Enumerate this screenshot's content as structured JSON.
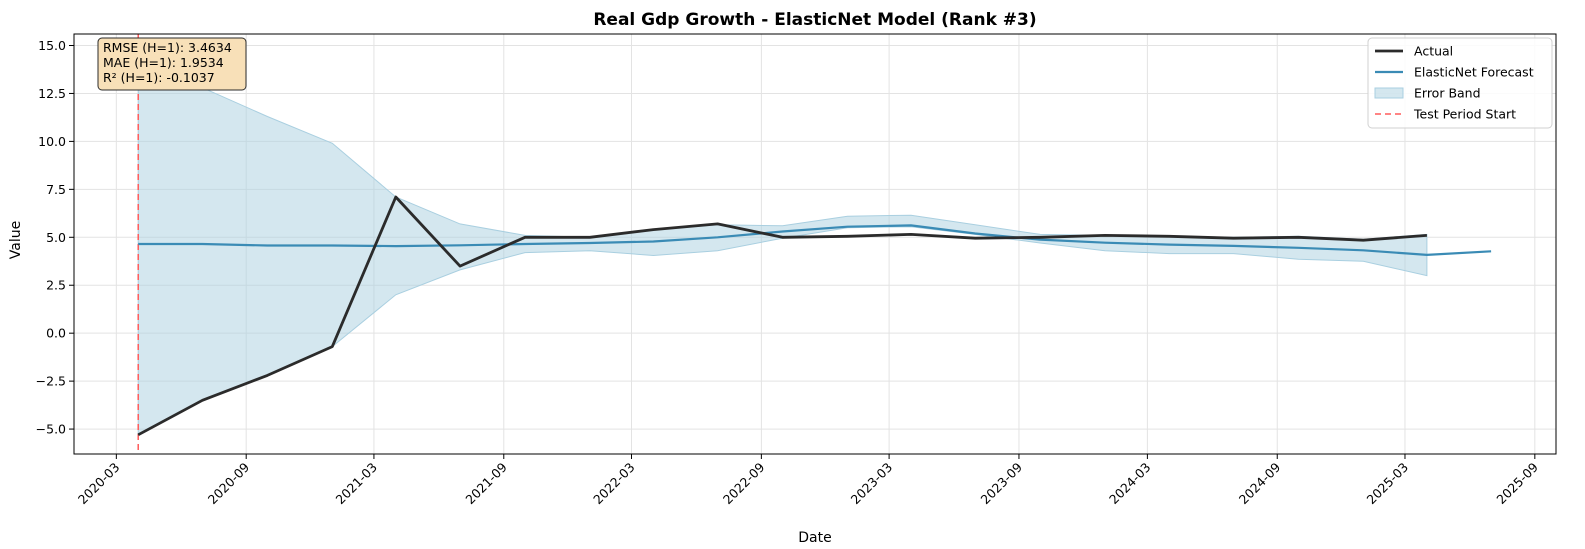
{
  "chart_data": {
    "type": "line",
    "title": "Real Gdp Growth - ElasticNet Model (Rank #3)",
    "xlabel": "Date",
    "ylabel": "Value",
    "ylim": [
      -6.3,
      15.6
    ],
    "xlim": [
      "2020-01-01",
      "2025-10-01"
    ],
    "grid": true,
    "legend_position": "top-right",
    "y_ticks": [
      -5.0,
      -2.5,
      0.0,
      2.5,
      5.0,
      7.5,
      10.0,
      12.5,
      15.0
    ],
    "y_tick_labels": [
      "−5.0",
      "−2.5",
      "0.0",
      "2.5",
      "5.0",
      "7.5",
      "10.0",
      "12.5",
      "15.0"
    ],
    "x_ticks": [
      "2020-03-01",
      "2020-09-01",
      "2021-03-01",
      "2021-09-01",
      "2022-03-01",
      "2022-09-01",
      "2023-03-01",
      "2023-09-01",
      "2024-03-01",
      "2024-09-01",
      "2025-03-01",
      "2025-09-01"
    ],
    "x_tick_labels": [
      "2020-03",
      "2020-09",
      "2021-03",
      "2021-09",
      "2022-03",
      "2022-09",
      "2023-03",
      "2023-09",
      "2024-03",
      "2024-09",
      "2025-03",
      "2025-09"
    ],
    "series": [
      {
        "name": "Actual",
        "color": "#2b2b2b",
        "x": [
          "2020-04-01",
          "2020-07-01",
          "2020-10-01",
          "2021-01-01",
          "2021-04-01",
          "2021-07-01",
          "2021-10-01",
          "2022-01-01",
          "2022-04-01",
          "2022-07-01",
          "2022-10-01",
          "2023-01-01",
          "2023-04-01",
          "2023-07-01",
          "2023-10-01",
          "2024-01-01",
          "2024-04-01",
          "2024-07-01",
          "2024-10-01",
          "2025-01-01",
          "2025-04-01"
        ],
        "y": [
          -5.3,
          -3.5,
          -2.2,
          -0.7,
          7.1,
          3.5,
          5.0,
          5.0,
          5.4,
          5.7,
          5.0,
          5.05,
          5.15,
          4.95,
          5.0,
          5.1,
          5.05,
          4.95,
          5.0,
          4.85,
          5.1
        ]
      },
      {
        "name": "ElasticNet Forecast",
        "color": "#3a8bb5",
        "x": [
          "2020-04-01",
          "2020-07-01",
          "2020-10-01",
          "2021-01-01",
          "2021-04-01",
          "2021-07-01",
          "2021-10-01",
          "2022-01-01",
          "2022-04-01",
          "2022-07-01",
          "2022-10-01",
          "2023-01-01",
          "2023-04-01",
          "2023-07-01",
          "2023-10-01",
          "2024-01-01",
          "2024-04-01",
          "2024-07-01",
          "2024-10-01",
          "2025-01-01",
          "2025-04-01",
          "2025-07-01"
        ],
        "y": [
          4.65,
          4.65,
          4.57,
          4.57,
          4.54,
          4.58,
          4.65,
          4.7,
          4.78,
          5.0,
          5.3,
          5.55,
          5.62,
          5.2,
          4.88,
          4.72,
          4.62,
          4.55,
          4.45,
          4.32,
          4.08,
          4.27
        ]
      }
    ],
    "error_band": {
      "name": "Error Band",
      "color": "#a9cfe0",
      "x": [
        "2020-04-01",
        "2020-07-01",
        "2020-10-01",
        "2021-01-01",
        "2021-04-01",
        "2021-07-01",
        "2021-10-01",
        "2022-01-01",
        "2022-04-01",
        "2022-07-01",
        "2022-10-01",
        "2023-01-01",
        "2023-04-01",
        "2023-07-01",
        "2023-10-01",
        "2024-01-01",
        "2024-04-01",
        "2024-07-01",
        "2024-10-01",
        "2025-01-01",
        "2025-04-01"
      ],
      "lower": [
        -5.3,
        -3.5,
        -2.2,
        -0.7,
        2.0,
        3.3,
        4.2,
        4.3,
        4.05,
        4.3,
        4.95,
        5.5,
        5.55,
        5.15,
        4.7,
        4.3,
        4.15,
        4.15,
        3.85,
        3.75,
        3.0
      ],
      "upper": [
        14.6,
        12.8,
        11.3,
        9.9,
        7.1,
        5.7,
        5.1,
        5.0,
        5.4,
        5.65,
        5.6,
        6.1,
        6.15,
        5.65,
        5.15,
        5.1,
        5.05,
        5.0,
        5.05,
        4.9,
        5.15
      ]
    },
    "vline": {
      "name": "Test Period Start",
      "x": "2020-04-01",
      "color": "#ff5b5b"
    },
    "metrics": [
      "RMSE (H=1): 3.4634",
      "MAE (H=1): 1.9534",
      "R² (H=1): -0.1037"
    ],
    "legend": [
      "Actual",
      "ElasticNet Forecast",
      "Error Band",
      "Test Period Start"
    ]
  }
}
